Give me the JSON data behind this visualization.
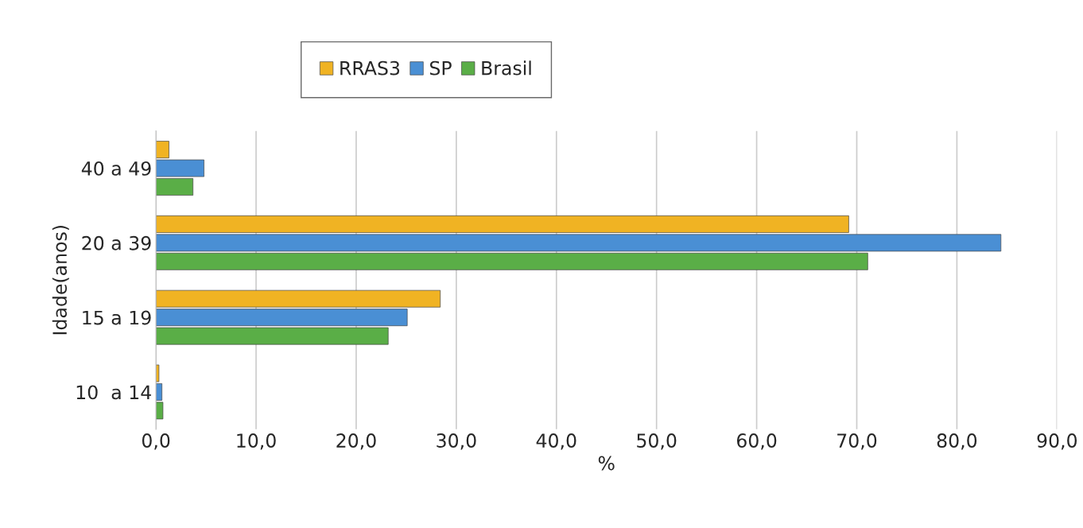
{
  "chart_data": {
    "type": "bar",
    "orientation": "horizontal",
    "xlabel": "%",
    "ylabel": "Idade(anos)",
    "categories": [
      "40 a 49",
      "20 a 39",
      "15 a 19",
      "10  a 14"
    ],
    "series": [
      {
        "name": "RRAS3",
        "color": "#f0b323",
        "values": [
          1.3,
          69.2,
          28.4,
          0.3
        ]
      },
      {
        "name": "SP",
        "color": "#4a8fd4",
        "values": [
          4.8,
          84.4,
          25.1,
          0.6
        ]
      },
      {
        "name": "Brasil",
        "color": "#5aae47",
        "values": [
          3.7,
          71.1,
          23.2,
          0.7
        ]
      }
    ],
    "xlim": [
      0,
      90
    ],
    "xticks": [
      {
        "value": 0,
        "label": "0,0"
      },
      {
        "value": 10,
        "label": "10,0"
      },
      {
        "value": 20,
        "label": "20,0"
      },
      {
        "value": 30,
        "label": "30,0"
      },
      {
        "value": 40,
        "label": "40,0"
      },
      {
        "value": 50,
        "label": "50,0"
      },
      {
        "value": 60,
        "label": "60,0"
      },
      {
        "value": 70,
        "label": "70,0"
      },
      {
        "value": 80,
        "label": "80,0"
      },
      {
        "value": 90,
        "label": "90,0"
      }
    ],
    "grid": "x",
    "legend": "top"
  }
}
